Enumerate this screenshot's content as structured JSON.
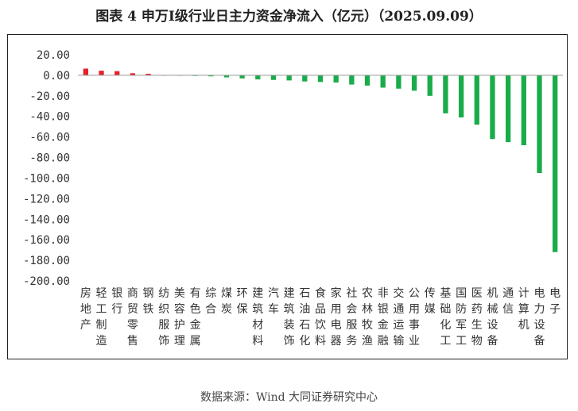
{
  "header": {
    "title": "图表 4  申万I级行业日主力资金净流入（亿元）（2025.09.09）"
  },
  "footer": {
    "source": "数据来源：Wind 大同证券研究中心"
  },
  "colors": {
    "positive": "#e8202a",
    "negative": "#1aac4a",
    "axis": "#999999"
  },
  "chart_data": {
    "type": "bar",
    "title": "图表 4  申万I级行业日主力资金净流入（亿元）（2025.09.09）",
    "xlabel": "",
    "ylabel": "",
    "ylim": [
      -200,
      20
    ],
    "yticks": [
      20,
      0,
      -20,
      -40,
      -60,
      -80,
      -100,
      -120,
      -140,
      -160,
      -180,
      -200
    ],
    "ytick_labels": [
      "20.00",
      "0.00",
      "-20.00",
      "-40.00",
      "-60.00",
      "-80.00",
      "-100.00",
      "-120.00",
      "-140.00",
      "-160.00",
      "-180.00",
      "-200.00"
    ],
    "grid": false,
    "legend": "none",
    "categories": [
      "房地产",
      "轻工制造",
      "银行",
      "商贸零售",
      "钢铁",
      "纺织服饰",
      "美容护理",
      "有色金属",
      "综合",
      "煤炭",
      "环保",
      "建筑材料",
      "汽车",
      "建筑装饰",
      "石油石化",
      "食品饮料",
      "家用电器",
      "社会服务",
      "农林牧渔",
      "非银金融",
      "交通运输",
      "公用事业",
      "传媒",
      "基础化工",
      "国防军工",
      "医药生物",
      "机械设备",
      "通信",
      "计算机",
      "电力设备",
      "电子"
    ],
    "values": [
      6.5,
      4.5,
      4.0,
      2.0,
      1.5,
      0.3,
      0.2,
      -0.3,
      -1.0,
      -2.0,
      -3.0,
      -4.0,
      -4.5,
      -5.0,
      -6.0,
      -6.5,
      -7.0,
      -9.0,
      -10.0,
      -12.0,
      -13.0,
      -15.0,
      -20.0,
      -37.0,
      -41.0,
      -48.0,
      -62.0,
      -65.0,
      -68.0,
      -95.0,
      -172.0
    ]
  }
}
